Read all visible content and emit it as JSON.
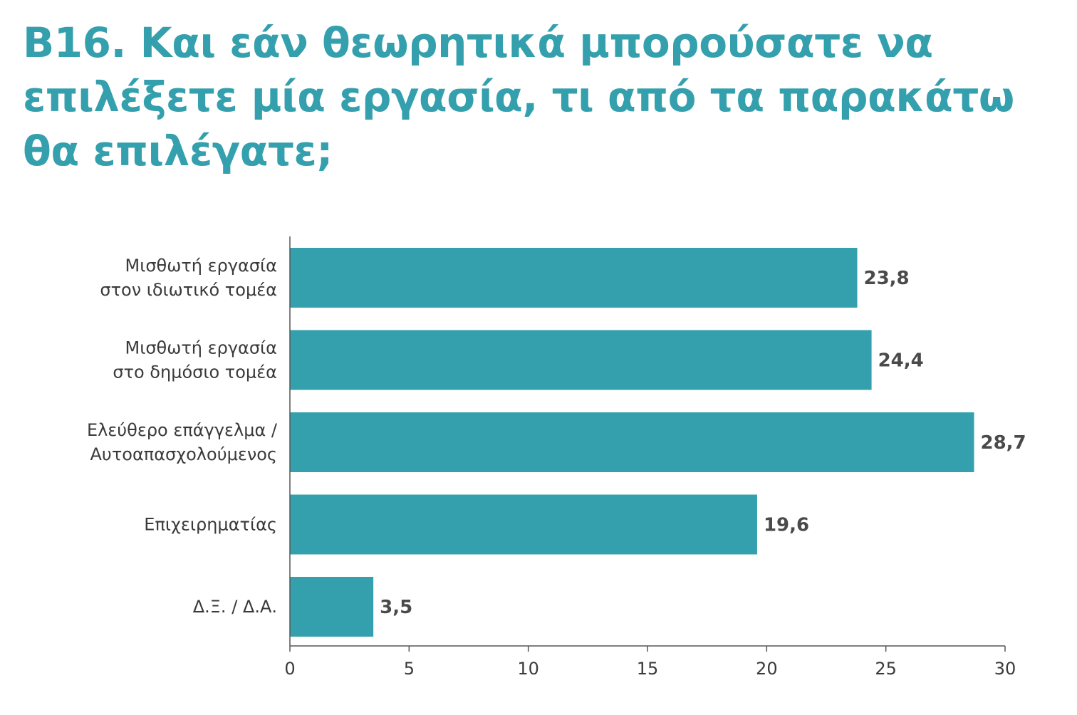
{
  "title_lines": [
    "Β16. Και εάν θεωρητικά μπορούσατε να",
    "επιλέξετε μία εργασία, τι από τα παρακάτω",
    "θα επιλέγατε;"
  ],
  "colors": {
    "title": "#35a0ad",
    "bar": "#35a0ad",
    "axis": "#555555"
  },
  "chart_data": {
    "type": "bar",
    "orientation": "horizontal",
    "categories": [
      [
        "Μισθωτή εργασία",
        "στον ιδιωτικό τομέα"
      ],
      [
        "Μισθωτή εργασία",
        "στο δημόσιο τομέα"
      ],
      [
        "Ελεύθερο επάγγελμα /",
        "Αυτοαπασχολούμενος"
      ],
      [
        "Επιχειρηματίας"
      ],
      [
        "Δ.Ξ. / Δ.Α."
      ]
    ],
    "values": [
      23.8,
      24.4,
      28.7,
      19.6,
      3.5
    ],
    "value_labels": [
      "23,8",
      "24,4",
      "28,7",
      "19,6",
      "3,5"
    ],
    "xlim": [
      0,
      30
    ],
    "ticks": [
      "0",
      "5",
      "10",
      "15",
      "20",
      "25",
      "30"
    ],
    "grid": false,
    "legend": "none"
  }
}
